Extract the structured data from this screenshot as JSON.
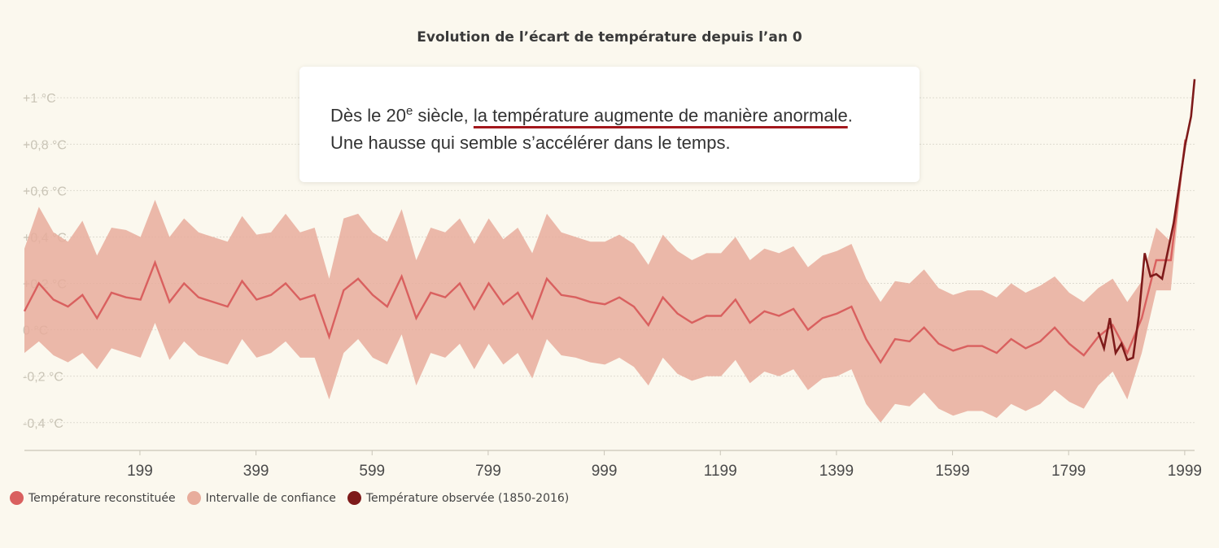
{
  "chart_data": {
    "type": "line",
    "title": "Evolution de l’écart de température depuis l’an 0",
    "xlabel": "",
    "ylabel": "",
    "xlim": [
      0,
      2016
    ],
    "ylim": [
      -0.52,
      1.12
    ],
    "x_ticks": [
      "199",
      "399",
      "599",
      "799",
      "999",
      "1199",
      "1399",
      "1599",
      "1799",
      "1999"
    ],
    "x_tick_values": [
      199,
      399,
      599,
      799,
      999,
      1199,
      1399,
      1599,
      1799,
      1999
    ],
    "y_ticks": [
      "+1 °C",
      "+0,8 °C",
      "+0,6 °C",
      "+0,4 °C",
      "+0,2 °C",
      "0 °C",
      "-0,2 °C",
      "-0,4 °C"
    ],
    "y_tick_values": [
      1.0,
      0.8,
      0.6,
      0.4,
      0.2,
      0.0,
      -0.2,
      -0.4
    ],
    "grid": true,
    "legend_position": "bottom-left",
    "series": [
      {
        "name": "Température reconstituée",
        "color": "#d9605f",
        "x": [
          0,
          25,
          50,
          75,
          100,
          125,
          150,
          175,
          200,
          225,
          250,
          275,
          300,
          325,
          350,
          375,
          400,
          425,
          450,
          475,
          500,
          525,
          550,
          575,
          600,
          625,
          650,
          675,
          700,
          725,
          750,
          775,
          800,
          825,
          850,
          875,
          900,
          925,
          950,
          975,
          1000,
          1025,
          1050,
          1075,
          1100,
          1125,
          1150,
          1175,
          1200,
          1225,
          1250,
          1275,
          1300,
          1325,
          1350,
          1375,
          1400,
          1425,
          1450,
          1475,
          1500,
          1525,
          1550,
          1575,
          1600,
          1625,
          1650,
          1675,
          1700,
          1725,
          1750,
          1775,
          1800,
          1825,
          1850,
          1875,
          1900,
          1925,
          1950,
          1975,
          2000
        ],
        "values": [
          0.08,
          0.2,
          0.13,
          0.1,
          0.15,
          0.05,
          0.16,
          0.14,
          0.13,
          0.29,
          0.12,
          0.2,
          0.14,
          0.12,
          0.1,
          0.21,
          0.13,
          0.15,
          0.2,
          0.13,
          0.15,
          -0.03,
          0.17,
          0.22,
          0.15,
          0.1,
          0.23,
          0.05,
          0.16,
          0.14,
          0.2,
          0.09,
          0.2,
          0.11,
          0.16,
          0.05,
          0.22,
          0.15,
          0.14,
          0.12,
          0.11,
          0.14,
          0.1,
          0.02,
          0.14,
          0.07,
          0.03,
          0.06,
          0.06,
          0.13,
          0.03,
          0.08,
          0.06,
          0.09,
          0.0,
          0.05,
          0.07,
          0.1,
          -0.04,
          -0.14,
          -0.04,
          -0.05,
          0.01,
          -0.06,
          -0.09,
          -0.07,
          -0.07,
          -0.1,
          -0.04,
          -0.08,
          -0.05,
          0.01,
          -0.06,
          -0.11,
          -0.03,
          0.02,
          -0.1,
          0.05,
          0.3,
          0.3,
          0.82
        ]
      },
      {
        "name": "Intervalle de confiance",
        "color": "#e8ad9c",
        "x": [
          0,
          25,
          50,
          75,
          100,
          125,
          150,
          175,
          200,
          225,
          250,
          275,
          300,
          325,
          350,
          375,
          400,
          425,
          450,
          475,
          500,
          525,
          550,
          575,
          600,
          625,
          650,
          675,
          700,
          725,
          750,
          775,
          800,
          825,
          850,
          875,
          900,
          925,
          950,
          975,
          1000,
          1025,
          1050,
          1075,
          1100,
          1125,
          1150,
          1175,
          1200,
          1225,
          1250,
          1275,
          1300,
          1325,
          1350,
          1375,
          1400,
          1425,
          1450,
          1475,
          1500,
          1525,
          1550,
          1575,
          1600,
          1625,
          1650,
          1675,
          1700,
          1725,
          1750,
          1775,
          1800,
          1825,
          1850,
          1875,
          1900,
          1925,
          1950,
          1975,
          2000
        ],
        "upper": [
          0.35,
          0.53,
          0.42,
          0.38,
          0.47,
          0.32,
          0.44,
          0.43,
          0.4,
          0.56,
          0.4,
          0.48,
          0.42,
          0.4,
          0.38,
          0.49,
          0.41,
          0.42,
          0.5,
          0.42,
          0.44,
          0.22,
          0.48,
          0.5,
          0.42,
          0.38,
          0.52,
          0.3,
          0.44,
          0.42,
          0.48,
          0.37,
          0.48,
          0.39,
          0.44,
          0.33,
          0.5,
          0.42,
          0.4,
          0.38,
          0.38,
          0.41,
          0.37,
          0.28,
          0.41,
          0.34,
          0.3,
          0.33,
          0.33,
          0.4,
          0.3,
          0.35,
          0.33,
          0.36,
          0.27,
          0.32,
          0.34,
          0.37,
          0.22,
          0.12,
          0.21,
          0.2,
          0.26,
          0.18,
          0.15,
          0.17,
          0.17,
          0.14,
          0.2,
          0.16,
          0.19,
          0.23,
          0.16,
          0.12,
          0.18,
          0.22,
          0.12,
          0.21,
          0.44,
          0.38,
          0.82
        ],
        "lower": [
          -0.1,
          -0.05,
          -0.11,
          -0.14,
          -0.1,
          -0.17,
          -0.08,
          -0.1,
          -0.12,
          0.03,
          -0.13,
          -0.05,
          -0.11,
          -0.13,
          -0.15,
          -0.04,
          -0.12,
          -0.1,
          -0.05,
          -0.12,
          -0.12,
          -0.3,
          -0.1,
          -0.04,
          -0.12,
          -0.15,
          -0.02,
          -0.24,
          -0.1,
          -0.12,
          -0.06,
          -0.17,
          -0.06,
          -0.15,
          -0.1,
          -0.21,
          -0.04,
          -0.11,
          -0.12,
          -0.14,
          -0.15,
          -0.12,
          -0.16,
          -0.24,
          -0.12,
          -0.19,
          -0.22,
          -0.2,
          -0.2,
          -0.13,
          -0.23,
          -0.18,
          -0.2,
          -0.17,
          -0.26,
          -0.21,
          -0.2,
          -0.17,
          -0.32,
          -0.4,
          -0.32,
          -0.33,
          -0.27,
          -0.34,
          -0.37,
          -0.35,
          -0.35,
          -0.38,
          -0.32,
          -0.35,
          -0.32,
          -0.26,
          -0.31,
          -0.34,
          -0.24,
          -0.18,
          -0.3,
          -0.1,
          0.17,
          0.17,
          0.82
        ]
      },
      {
        "name": "Température observée (1850-2016)",
        "color": "#7e1a1a",
        "x": [
          1850,
          1860,
          1870,
          1880,
          1890,
          1900,
          1910,
          1920,
          1930,
          1940,
          1950,
          1960,
          1970,
          1980,
          1990,
          2000,
          2010,
          2016
        ],
        "values": [
          -0.01,
          -0.08,
          0.05,
          -0.1,
          -0.06,
          -0.13,
          -0.12,
          0.06,
          0.33,
          0.23,
          0.24,
          0.22,
          0.34,
          0.46,
          0.63,
          0.8,
          0.92,
          1.08
        ]
      }
    ]
  },
  "callout": {
    "line1_prefix": "Dès le 20",
    "line1_sup": "e",
    "line1_mid": " siècle, ",
    "line1_underline": "la température augmente de manière anormale",
    "line1_suffix": ".",
    "line2": "Une hausse qui semble s’accélérer dans le temps."
  },
  "legend": [
    {
      "label": "Température reconstituée",
      "color": "#d9605f"
    },
    {
      "label": "Intervalle de confiance",
      "color": "#e8ad9c"
    },
    {
      "label": "Température observée (1850-2016)",
      "color": "#7e1a1a"
    }
  ]
}
